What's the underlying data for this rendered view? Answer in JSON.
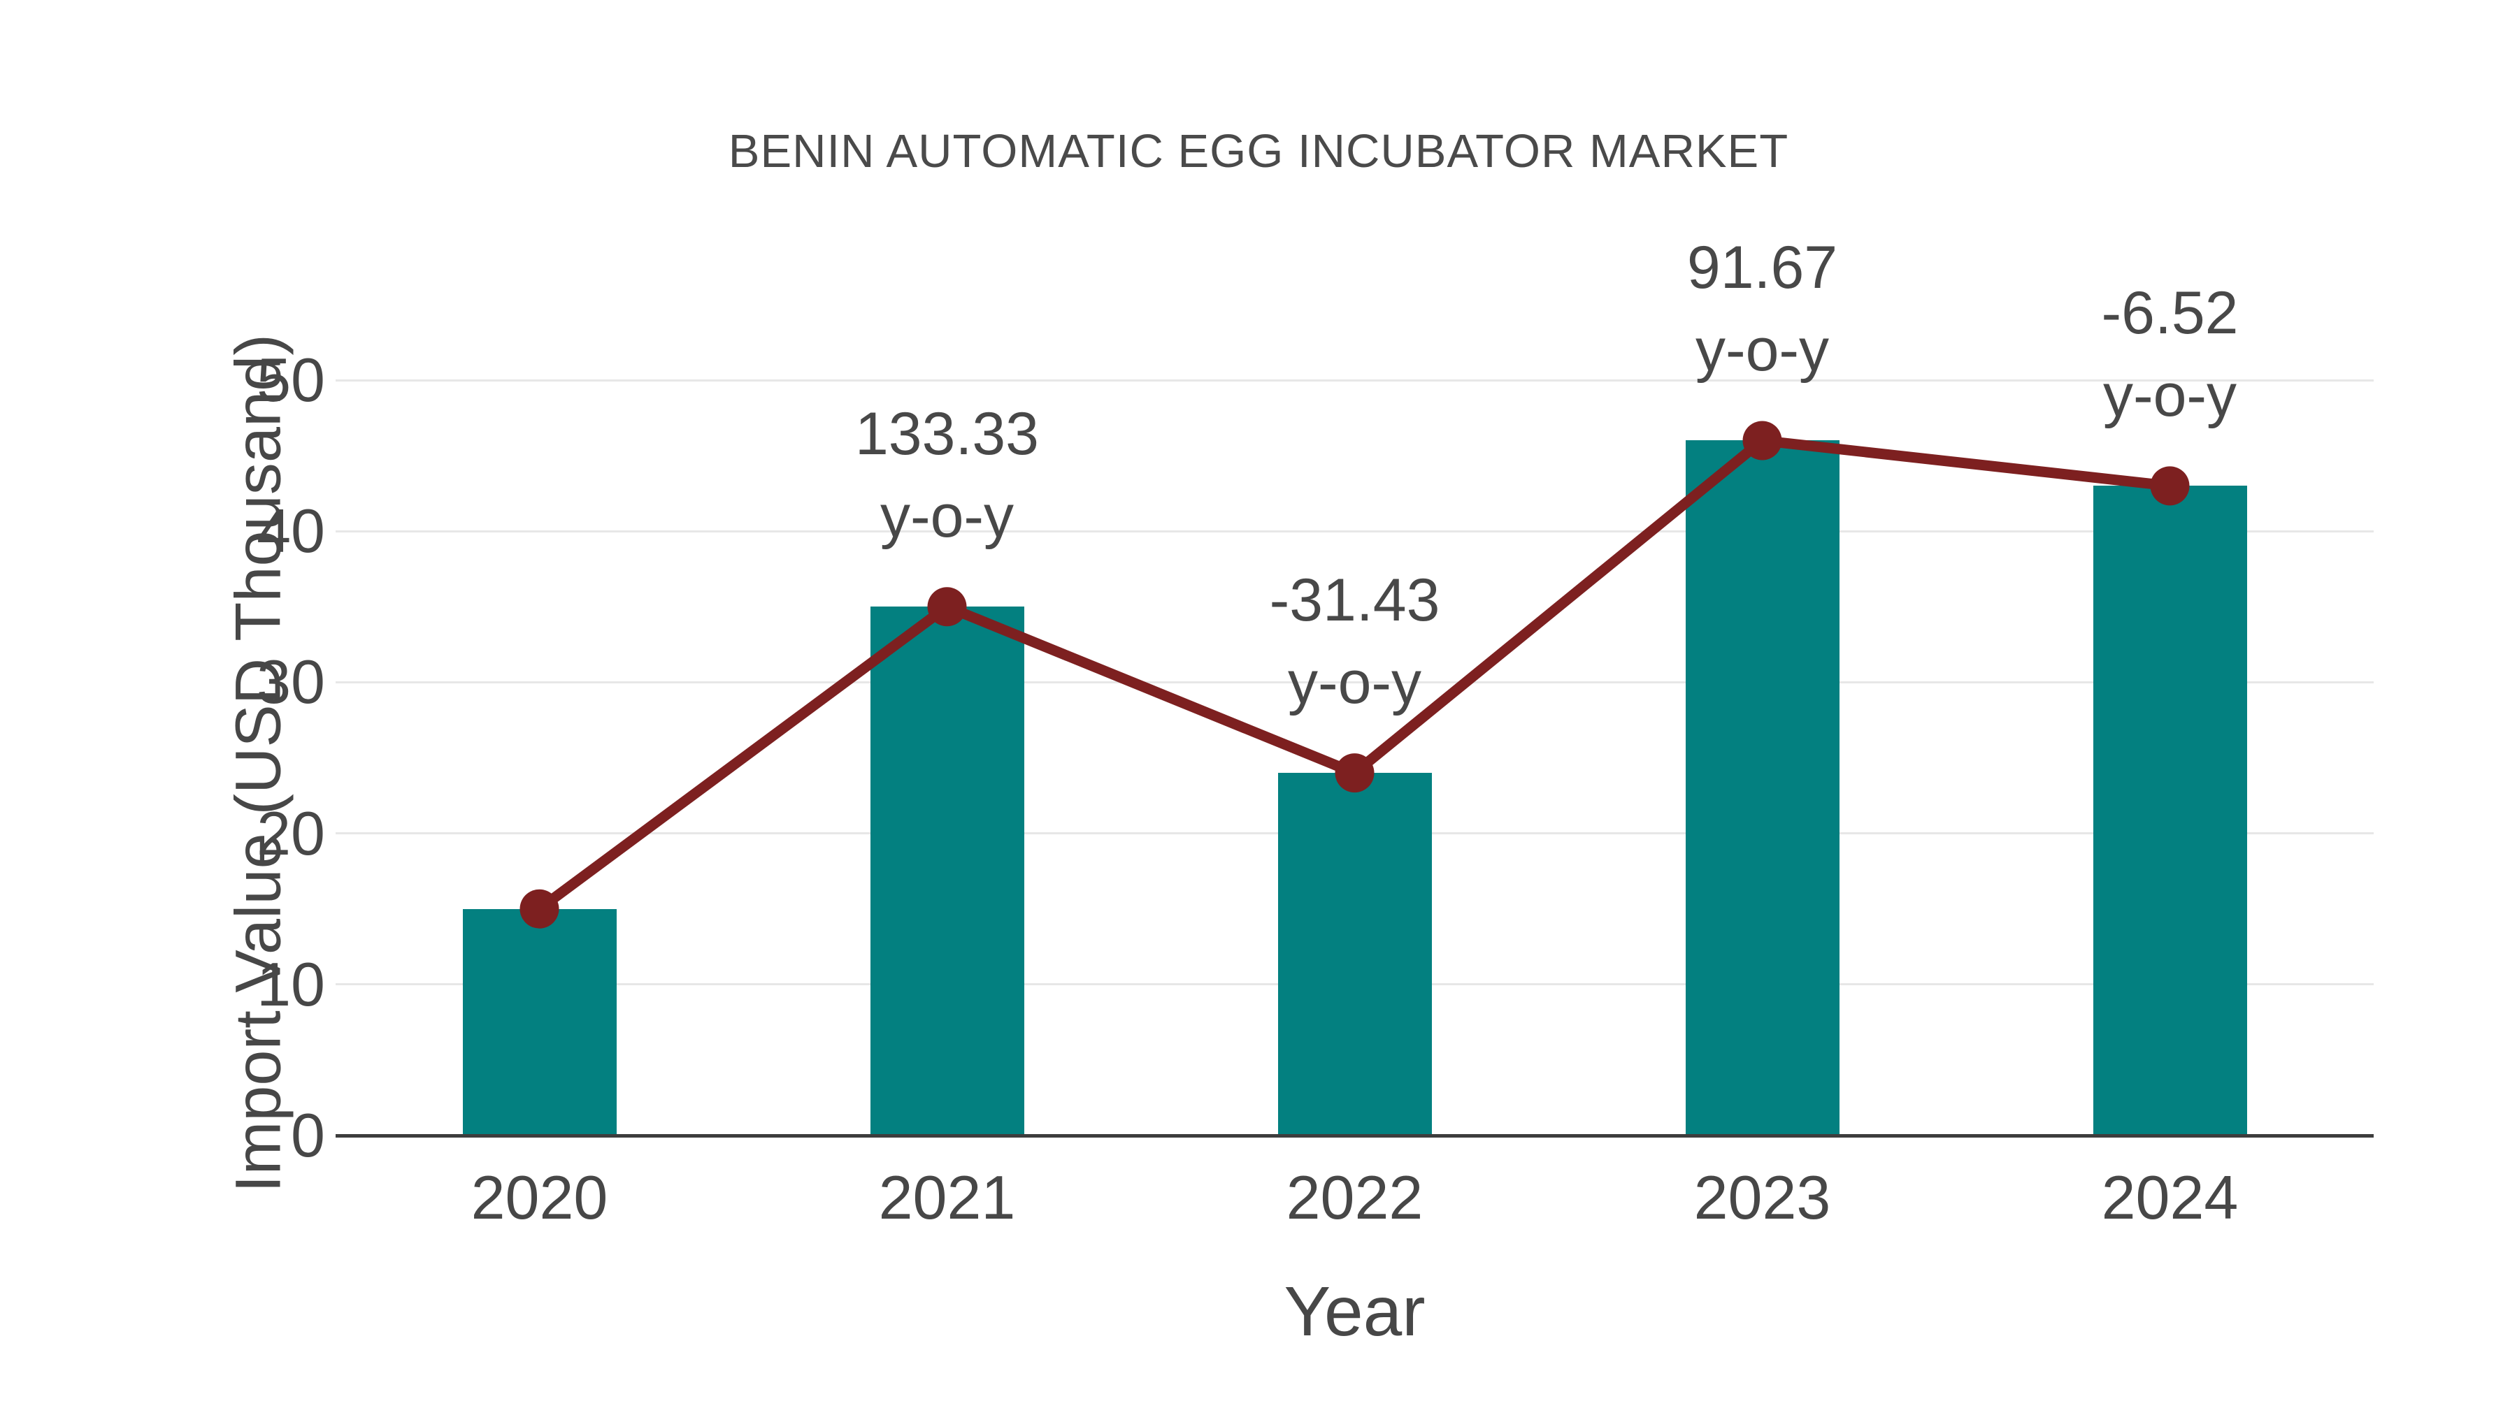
{
  "title": "BENIN AUTOMATIC EGG INCUBATOR MARKET",
  "chart_data": {
    "type": "bar",
    "title": "BENIN AUTOMATIC EGG INCUBATOR MARKET",
    "xlabel": "Year",
    "ylabel": "Import Value (USD Thousand)",
    "categories": [
      "2020",
      "2021",
      "2022",
      "2023",
      "2024"
    ],
    "series": [
      {
        "name": "Import Value (USD Thousand)",
        "type": "bar",
        "values": [
          15,
          35,
          24,
          46,
          43
        ],
        "color": "#038080"
      },
      {
        "name": "y-o-y change",
        "type": "line",
        "values": [
          null,
          133.33,
          -31.43,
          91.67,
          -6.52
        ],
        "color": "#7d2020"
      }
    ],
    "annotations": [
      {
        "category": "2021",
        "line1": "133.33",
        "line2": "y-o-y"
      },
      {
        "category": "2022",
        "line1": "-31.43",
        "line2": "y-o-y"
      },
      {
        "category": "2023",
        "line1": "91.67",
        "line2": "y-o-y"
      },
      {
        "category": "2024",
        "line1": "-6.52",
        "line2": "y-o-y"
      }
    ],
    "yticks": [
      0,
      10,
      20,
      30,
      40,
      50
    ],
    "ylim": [
      0,
      50
    ],
    "grid": true,
    "legend_position": "none"
  },
  "colors": {
    "bar": "#038080",
    "line": "#7d2020",
    "grid": "#e7e7e7",
    "axis": "#3d3d3d",
    "text": "#474747"
  }
}
